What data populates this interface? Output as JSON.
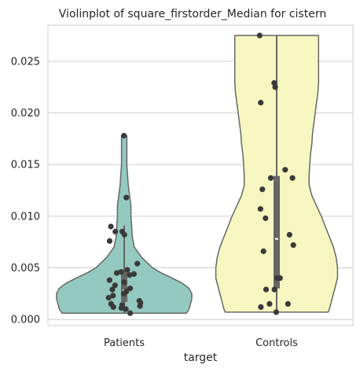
{
  "chart_data": {
    "type": "violin",
    "title": "Violinplot of square_firstorder_Median for cistern",
    "xlabel": "target",
    "ylabel": "",
    "ylim": [
      -0.0006,
      0.0285
    ],
    "yticks": [
      0.0,
      0.005,
      0.01,
      0.015,
      0.02,
      0.025
    ],
    "ytick_labels": [
      "0.000",
      "0.005",
      "0.010",
      "0.015",
      "0.020",
      "0.025"
    ],
    "grid": "horizontal",
    "categories": [
      "Patients",
      "Controls"
    ],
    "groups": [
      {
        "category": "Patients",
        "color": "#93c9c0",
        "box": {
          "q1": 0.0017,
          "median": 0.0028,
          "q3": 0.0047,
          "whisker_low": 0.0006,
          "whisker_high": 0.0091
        },
        "density_profile": [
          [
            0.0006,
            0.92
          ],
          [
            0.001,
            0.96
          ],
          [
            0.0015,
            0.98
          ],
          [
            0.002,
            1.0
          ],
          [
            0.0025,
            1.0
          ],
          [
            0.003,
            0.96
          ],
          [
            0.0035,
            0.86
          ],
          [
            0.004,
            0.71
          ],
          [
            0.0045,
            0.55
          ],
          [
            0.005,
            0.42
          ],
          [
            0.006,
            0.26
          ],
          [
            0.007,
            0.15
          ],
          [
            0.008,
            0.12
          ],
          [
            0.009,
            0.11
          ],
          [
            0.01,
            0.1
          ],
          [
            0.011,
            0.1
          ],
          [
            0.012,
            0.08
          ],
          [
            0.013,
            0.06
          ],
          [
            0.014,
            0.05
          ],
          [
            0.015,
            0.04
          ],
          [
            0.016,
            0.04
          ],
          [
            0.017,
            0.04
          ],
          [
            0.0178,
            0.04
          ]
        ],
        "points": [
          0.0178,
          0.0118,
          0.009,
          0.0085,
          0.0085,
          0.0082,
          0.0076,
          0.0054,
          0.0048,
          0.0046,
          0.0045,
          0.0044,
          0.0043,
          0.0038,
          0.0036,
          0.0033,
          0.003,
          0.0029,
          0.0027,
          0.0025,
          0.0023,
          0.0021,
          0.0018,
          0.0016,
          0.0015,
          0.0014,
          0.0013,
          0.0012,
          0.0011,
          0.001,
          0.0006
        ]
      },
      {
        "category": "Controls",
        "color": "#f7f6c0",
        "box": {
          "q1": 0.003,
          "median": 0.0078,
          "q3": 0.0139,
          "whisker_low": 0.0007,
          "whisker_high": 0.0275
        },
        "density_profile": [
          [
            0.0007,
            0.76
          ],
          [
            0.001,
            0.78
          ],
          [
            0.002,
            0.82
          ],
          [
            0.003,
            0.86
          ],
          [
            0.004,
            0.9
          ],
          [
            0.005,
            0.9
          ],
          [
            0.006,
            0.88
          ],
          [
            0.007,
            0.84
          ],
          [
            0.008,
            0.78
          ],
          [
            0.009,
            0.72
          ],
          [
            0.01,
            0.66
          ],
          [
            0.011,
            0.59
          ],
          [
            0.012,
            0.52
          ],
          [
            0.013,
            0.48
          ],
          [
            0.014,
            0.48
          ],
          [
            0.015,
            0.49
          ],
          [
            0.016,
            0.5
          ],
          [
            0.017,
            0.52
          ],
          [
            0.018,
            0.53
          ],
          [
            0.019,
            0.55
          ],
          [
            0.02,
            0.57
          ],
          [
            0.021,
            0.59
          ],
          [
            0.022,
            0.61
          ],
          [
            0.023,
            0.62
          ],
          [
            0.024,
            0.62
          ],
          [
            0.025,
            0.62
          ],
          [
            0.026,
            0.62
          ],
          [
            0.0275,
            0.62
          ]
        ],
        "points": [
          0.0275,
          0.0229,
          0.0225,
          0.021,
          0.0145,
          0.0137,
          0.0137,
          0.0126,
          0.0107,
          0.0098,
          0.0082,
          0.0072,
          0.0066,
          0.004,
          0.004,
          0.0029,
          0.0029,
          0.0015,
          0.0015,
          0.0012,
          0.0007
        ]
      }
    ]
  }
}
